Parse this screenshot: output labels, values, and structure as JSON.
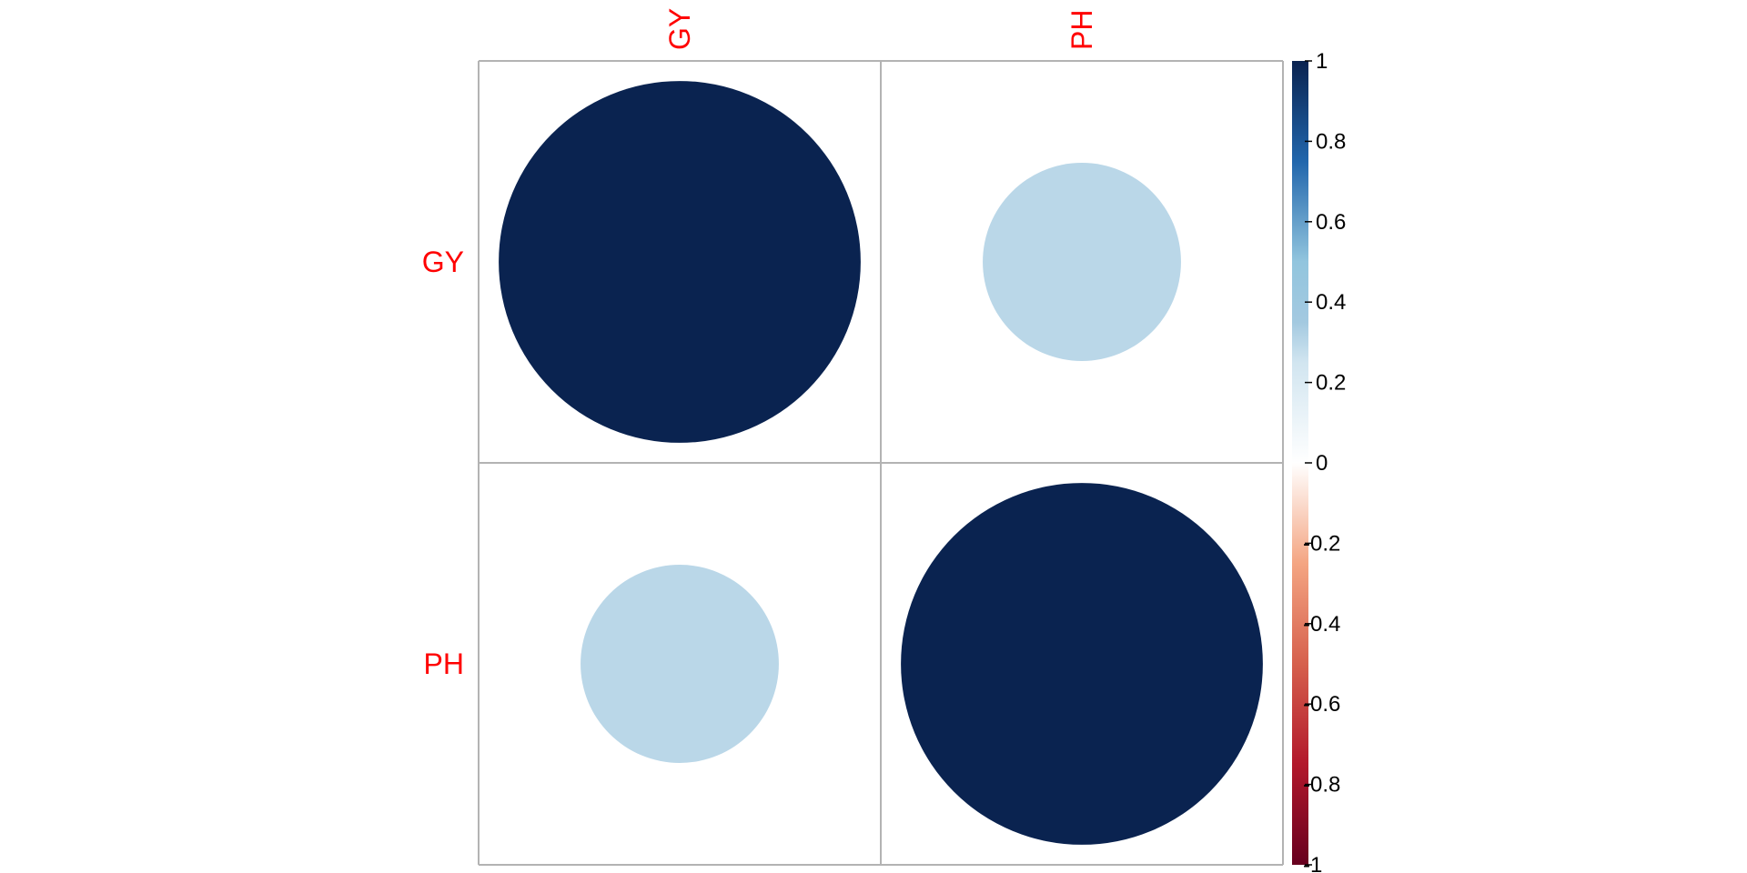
{
  "chart_data": {
    "type": "heatmap",
    "subtype": "correlation-circle-plot",
    "variables": [
      "GY",
      "PH"
    ],
    "matrix": [
      [
        1.0,
        0.3
      ],
      [
        0.3,
        1.0
      ]
    ],
    "legend": {
      "position": "right",
      "range": [
        -1,
        1
      ],
      "ticks": [
        1,
        0.8,
        0.6,
        0.4,
        0.2,
        0,
        -0.2,
        -0.4,
        -0.6,
        -0.8,
        -1
      ],
      "tick_labels": [
        "1",
        "0.8",
        "0.6",
        "0.4",
        "0.2",
        "0",
        "-0.2",
        "-0.4",
        "-0.6",
        "-0.8",
        "-1"
      ]
    },
    "colorscale": [
      {
        "value": -1.0,
        "color": "#67001F"
      },
      {
        "value": -0.75,
        "color": "#B2182B"
      },
      {
        "value": -0.5,
        "color": "#D6604D"
      },
      {
        "value": -0.25,
        "color": "#F4A582"
      },
      {
        "value": 0.0,
        "color": "#FFFFFF"
      },
      {
        "value": 0.25,
        "color": "#D1E5F0"
      },
      {
        "value": 0.35,
        "color": "#A3C9E0"
      },
      {
        "value": 0.5,
        "color": "#92C5DE"
      },
      {
        "value": 0.75,
        "color": "#2166AC"
      },
      {
        "value": 1.0,
        "color": "#0A2350"
      }
    ],
    "grid": true,
    "label_color": "#ff0000",
    "grid_color": "#b3b3b3"
  }
}
